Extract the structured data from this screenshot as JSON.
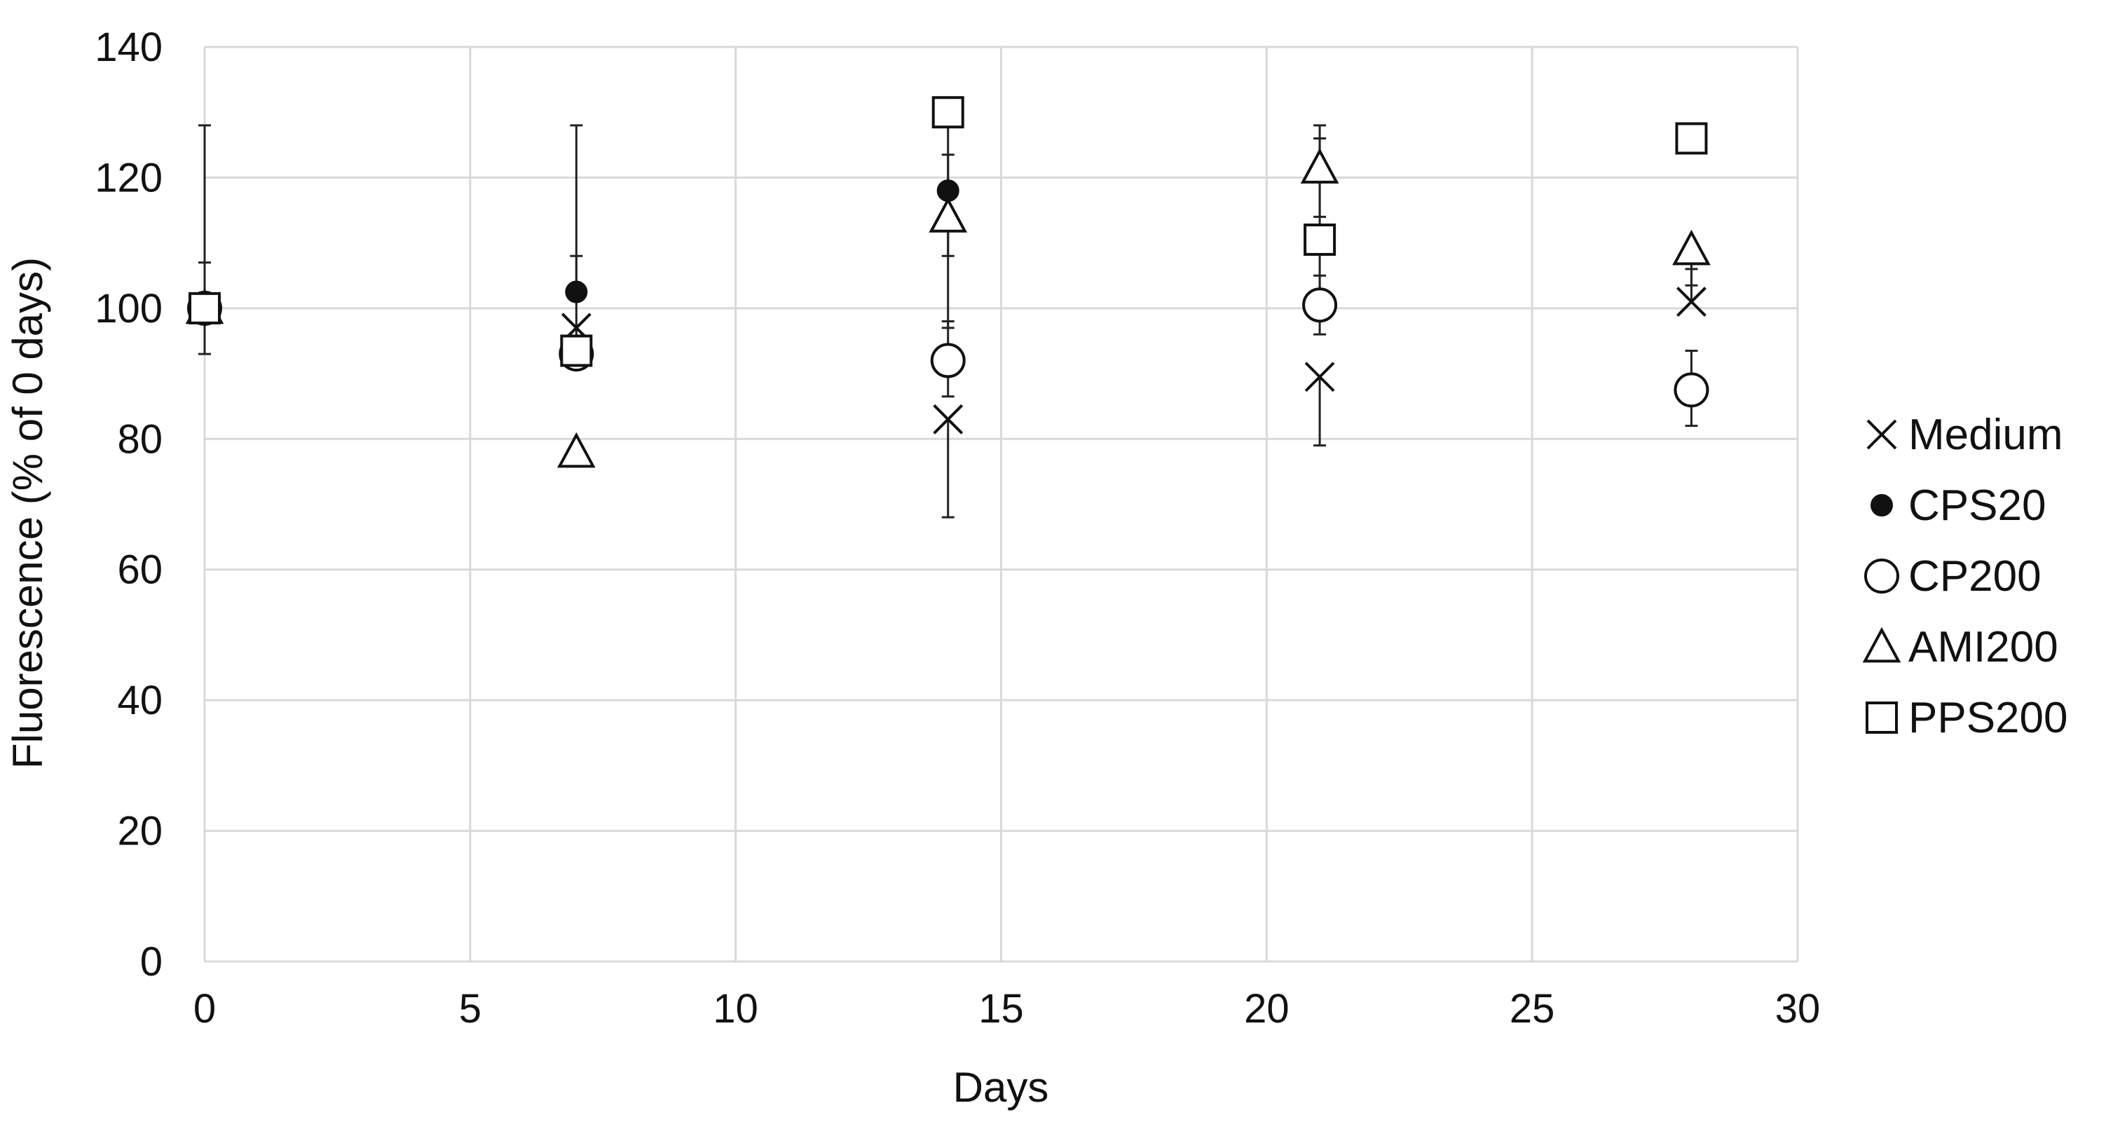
{
  "chart_data": {
    "type": "scatter",
    "xlabel": "Days",
    "ylabel": "Fluorescence (% of 0 days)",
    "xlim": [
      0,
      30
    ],
    "ylim": [
      0,
      140
    ],
    "xticks": [
      0,
      5,
      10,
      15,
      20,
      25,
      30
    ],
    "yticks": [
      0,
      20,
      40,
      60,
      80,
      100,
      120,
      140
    ],
    "grid": true,
    "legend_position": "right",
    "series": [
      {
        "name": "Medium",
        "marker": "x-mark",
        "x": [
          0,
          7,
          14,
          21,
          28
        ],
        "y": [
          100,
          97,
          83,
          89.5,
          101
        ],
        "err_low": [
          null,
          null,
          68,
          79,
          null
        ],
        "err_high": [
          null,
          null,
          null,
          null,
          106
        ]
      },
      {
        "name": "CPS20",
        "marker": "filled-circle",
        "x": [
          0,
          7,
          14
        ],
        "y": [
          100,
          102.5,
          118
        ],
        "err_low": [
          null,
          null,
          97
        ],
        "err_high": [
          null,
          108,
          123.5
        ]
      },
      {
        "name": "CP200",
        "marker": "open-circle",
        "x": [
          0,
          7,
          14,
          21,
          28
        ],
        "y": [
          100,
          93,
          92,
          100.5,
          87.5
        ],
        "err_low": [
          93,
          null,
          86.5,
          96,
          82
        ],
        "err_high": [
          107,
          null,
          98,
          105,
          93.5
        ]
      },
      {
        "name": "AMI200",
        "marker": "open-triangle",
        "x": [
          0,
          7,
          14,
          21,
          28
        ],
        "y": [
          100,
          78,
          114,
          121.5,
          109
        ],
        "err_low": [
          null,
          null,
          null,
          114,
          103.5
        ],
        "err_high": [
          null,
          null,
          null,
          128,
          null
        ]
      },
      {
        "name": "PPS200",
        "marker": "open-square",
        "x": [
          0,
          7,
          14,
          21,
          28
        ],
        "y": [
          100,
          93.5,
          130,
          110.5,
          126
        ],
        "err_low": [
          null,
          null,
          108,
          100.5,
          null
        ],
        "err_high": [
          128,
          128,
          null,
          126,
          null
        ]
      }
    ]
  }
}
